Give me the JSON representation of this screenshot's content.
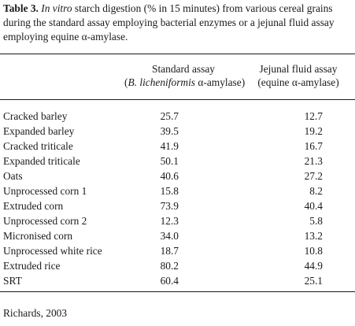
{
  "caption": {
    "label": "Table 3.",
    "italic": "In vitro",
    "text": " starch digestion (% in 15 minutes) from various cereal grains during the standard assay employing bacterial enzymes or a jejunal fluid assay employing equine α-amylase."
  },
  "columns": {
    "standard": {
      "line1": "Standard assay",
      "open": "(",
      "italic": "B. licheniformis",
      "rest": " α-amylase)"
    },
    "jejunal": {
      "line1": "Jejunal fluid assay",
      "line2": "(equine α-amylase)"
    }
  },
  "rows": [
    {
      "name": "Cracked barley",
      "standard": "25.7",
      "jejunal": "12.7"
    },
    {
      "name": "Expanded barley",
      "standard": "39.5",
      "jejunal": "19.2"
    },
    {
      "name": "Cracked triticale",
      "standard": "41.9",
      "jejunal": "16.7"
    },
    {
      "name": "Expanded triticale",
      "standard": "50.1",
      "jejunal": "21.3"
    },
    {
      "name": "Oats",
      "standard": "40.6",
      "jejunal": "27.2"
    },
    {
      "name": "Unprocessed corn 1",
      "standard": "15.8",
      "jejunal": "8.2"
    },
    {
      "name": "Extruded corn",
      "standard": "73.9",
      "jejunal": "40.4"
    },
    {
      "name": "Unprocessed corn 2",
      "standard": "12.3",
      "jejunal": "5.8"
    },
    {
      "name": "Micronised corn",
      "standard": "34.0",
      "jejunal": "13.2"
    },
    {
      "name": "Unprocessed white rice",
      "standard": "18.7",
      "jejunal": "10.8"
    },
    {
      "name": "Extruded rice",
      "standard": "80.2",
      "jejunal": "44.9"
    },
    {
      "name": "SRT",
      "standard": "60.4",
      "jejunal": "25.1"
    }
  ],
  "source": "Richards, 2003"
}
